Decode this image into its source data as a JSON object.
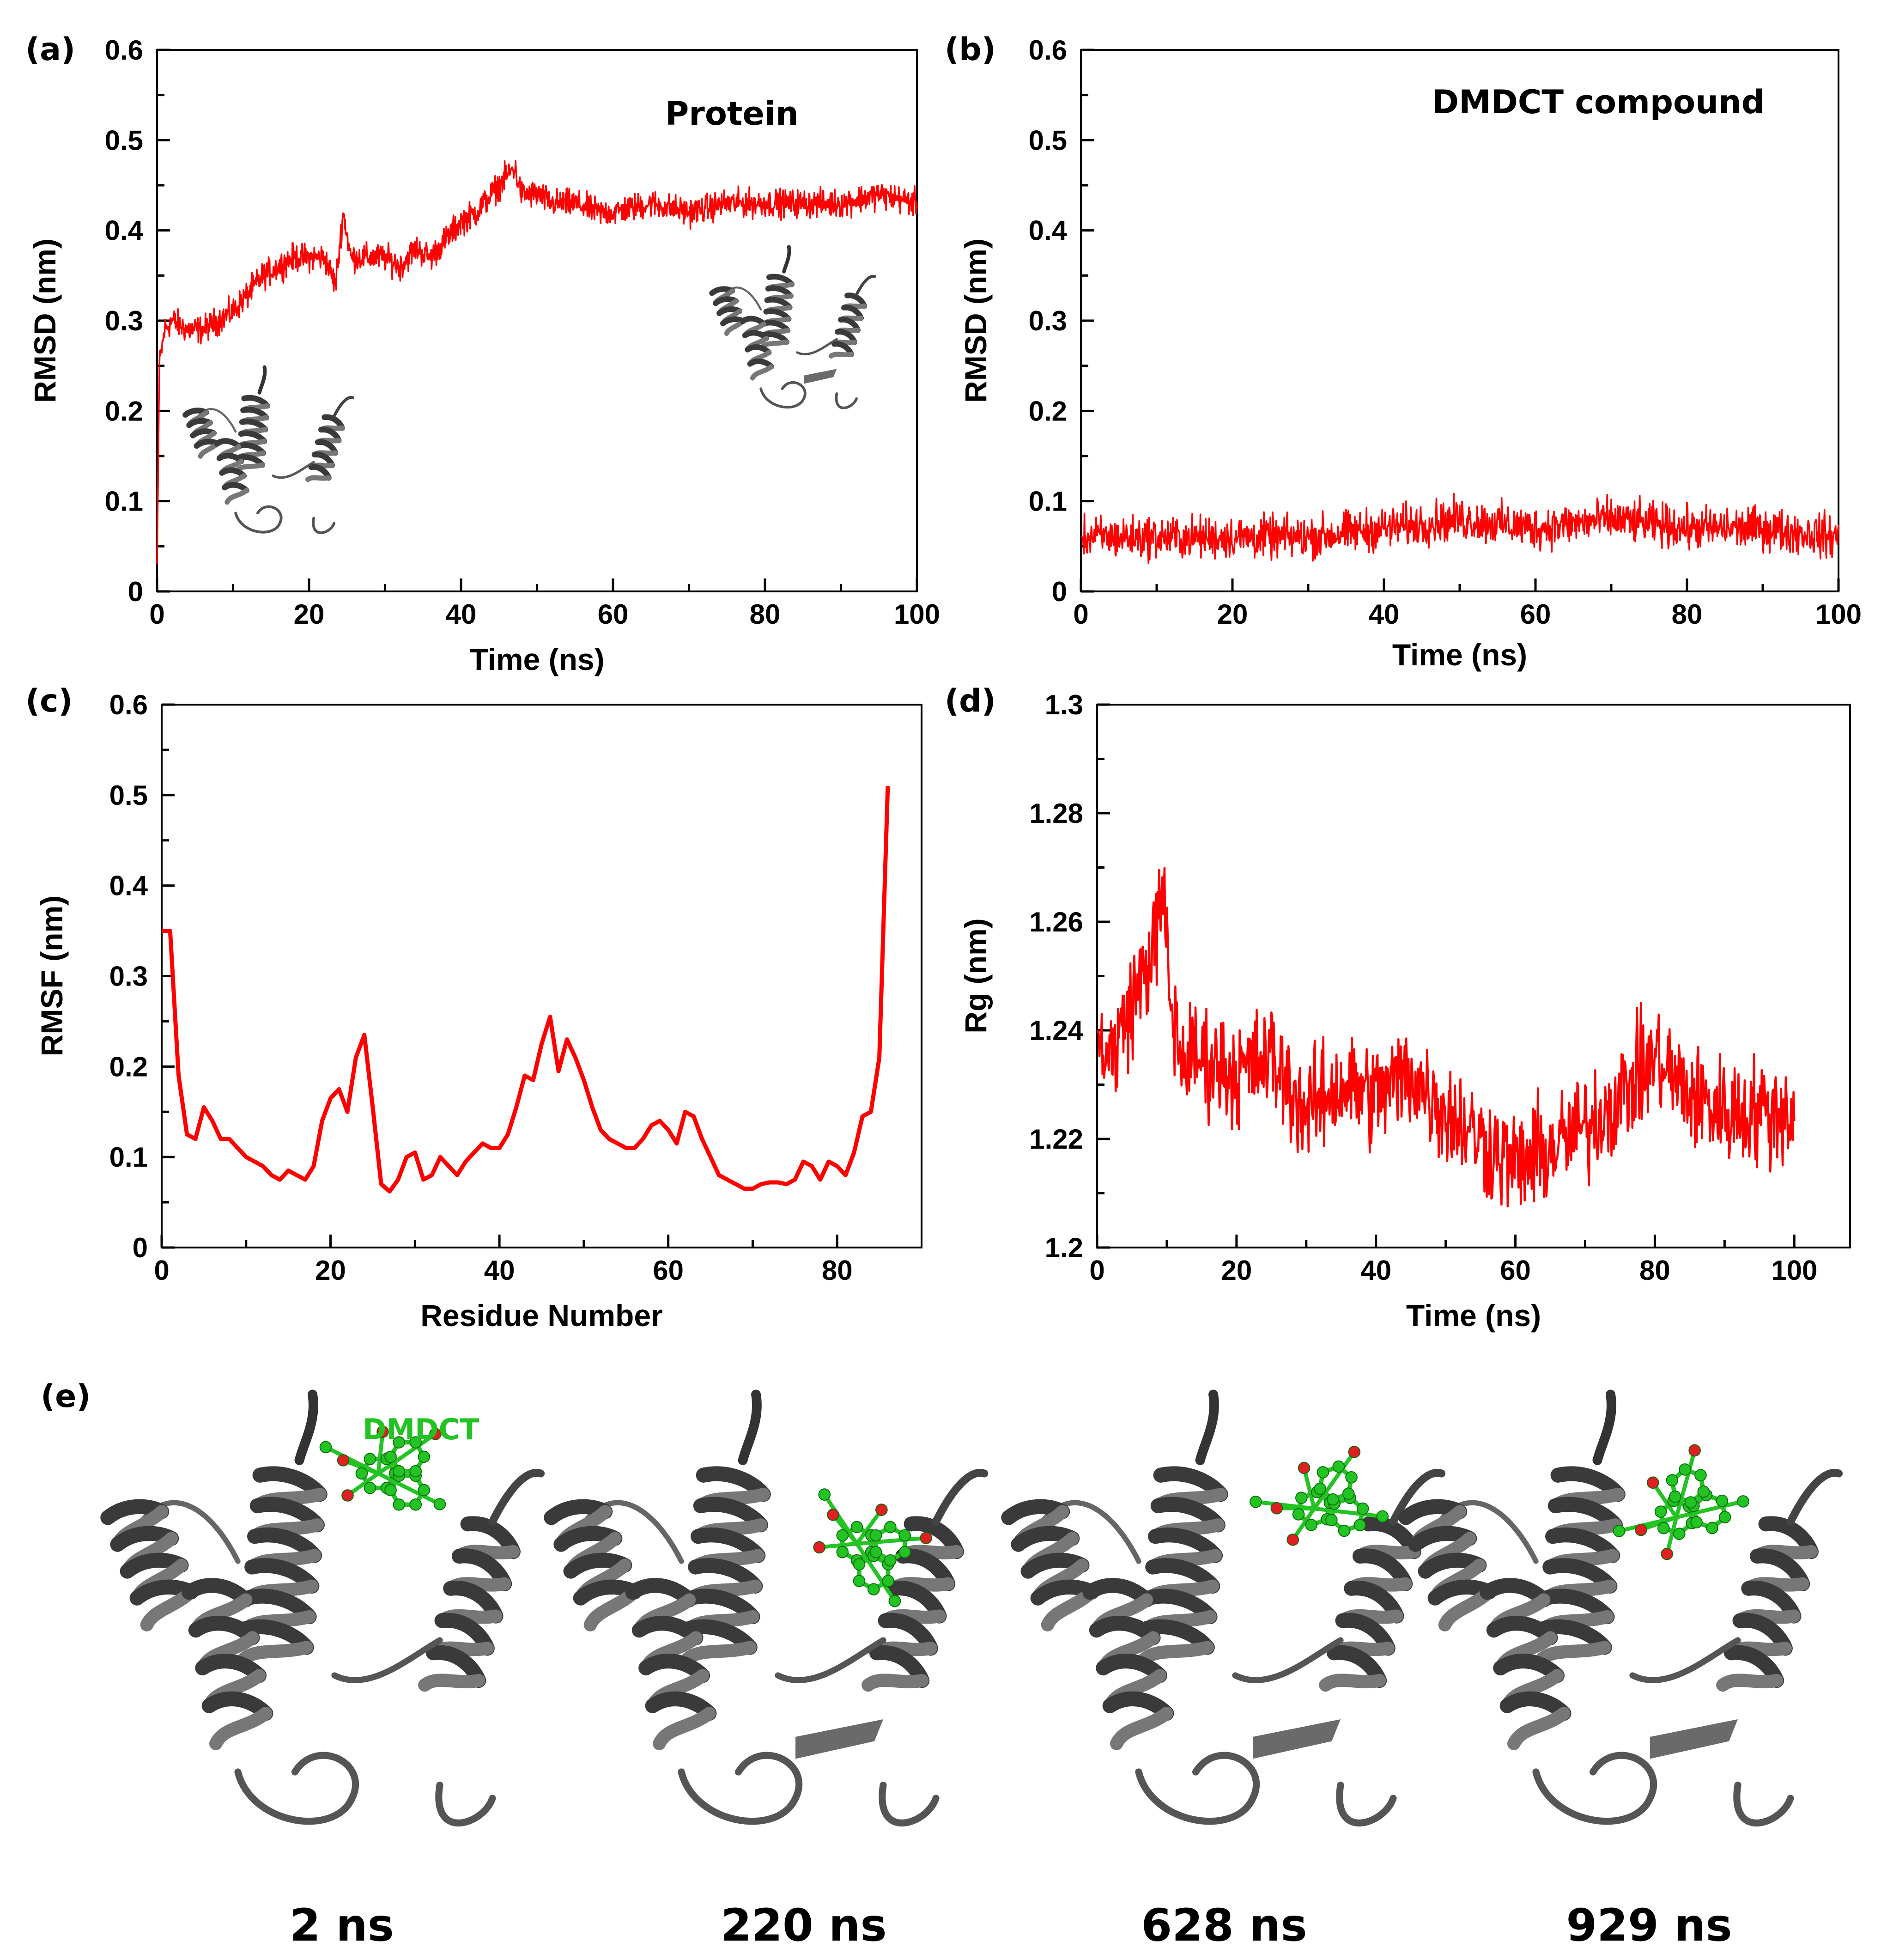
{
  "chart_data": [
    {
      "type": "line",
      "panel": "(a)",
      "annotation": "Protein",
      "xlabel": "Time (ns)",
      "ylabel": "RMSD (nm)",
      "xlim": [
        0,
        100
      ],
      "ylim": [
        0,
        0.6
      ],
      "xticks": [
        "0",
        "20",
        "40",
        "60",
        "80",
        "100"
      ],
      "yticks": [
        "0",
        "0.1",
        "0.2",
        "0.3",
        "0.4",
        "0.5",
        "0.6"
      ],
      "color": "#ff0000",
      "x": [
        0,
        0.3,
        1,
        2,
        4,
        6,
        8,
        10,
        12,
        14,
        16,
        18,
        20,
        22,
        23.5,
        24.5,
        25.5,
        28,
        30,
        32,
        34,
        36,
        38,
        40,
        42,
        44,
        46,
        47,
        48,
        50,
        52,
        55,
        58,
        60,
        65,
        70,
        75,
        80,
        85,
        90,
        95,
        100
      ],
      "values": [
        0.03,
        0.25,
        0.29,
        0.3,
        0.29,
        0.29,
        0.3,
        0.31,
        0.33,
        0.35,
        0.36,
        0.37,
        0.37,
        0.37,
        0.34,
        0.42,
        0.37,
        0.37,
        0.37,
        0.36,
        0.38,
        0.37,
        0.39,
        0.41,
        0.42,
        0.44,
        0.46,
        0.47,
        0.44,
        0.44,
        0.43,
        0.43,
        0.42,
        0.42,
        0.43,
        0.42,
        0.43,
        0.43,
        0.43,
        0.43,
        0.44,
        0.43
      ],
      "noise": 0.013
    },
    {
      "type": "line",
      "panel": "(b)",
      "annotation": "DMDCT compound",
      "xlabel": "Time (ns)",
      "ylabel": "RMSD (nm)",
      "xlim": [
        0,
        100
      ],
      "ylim": [
        0,
        0.6
      ],
      "xticks": [
        "0",
        "20",
        "40",
        "60",
        "80",
        "100"
      ],
      "yticks": [
        "0",
        "0.1",
        "0.2",
        "0.3",
        "0.4",
        "0.5",
        "0.6"
      ],
      "color": "#ff0000",
      "x": [
        0,
        10,
        20,
        30,
        40,
        50,
        60,
        70,
        80,
        90,
        100
      ],
      "values": [
        0.06,
        0.06,
        0.06,
        0.06,
        0.07,
        0.08,
        0.07,
        0.08,
        0.07,
        0.07,
        0.06
      ],
      "noise": 0.02
    },
    {
      "type": "line",
      "panel": "(c)",
      "xlabel": "Residue Number",
      "ylabel": "RMSF (nm)",
      "xlim": [
        0,
        90
      ],
      "ylim": [
        0,
        0.6
      ],
      "xticks": [
        "0",
        "20",
        "40",
        "60",
        "80"
      ],
      "yticks": [
        "0",
        "0.1",
        "0.2",
        "0.3",
        "0.4",
        "0.5",
        "0.6"
      ],
      "color": "#ff0000",
      "x": [
        0,
        1,
        2,
        3,
        4,
        5,
        6,
        7,
        8,
        9,
        10,
        11,
        12,
        13,
        14,
        15,
        16,
        17,
        18,
        19,
        20,
        21,
        22,
        23,
        24,
        25,
        26,
        27,
        28,
        29,
        30,
        31,
        32,
        33,
        34,
        35,
        36,
        37,
        38,
        39,
        40,
        41,
        42,
        43,
        44,
        45,
        46,
        47,
        48,
        49,
        50,
        51,
        52,
        53,
        54,
        55,
        56,
        57,
        58,
        59,
        60,
        61,
        62,
        63,
        64,
        65,
        66,
        67,
        68,
        69,
        70,
        71,
        72,
        73,
        74,
        75,
        76,
        77,
        78,
        79,
        80,
        81,
        82,
        83,
        84,
        85,
        86
      ],
      "values": [
        0.35,
        0.35,
        0.19,
        0.125,
        0.12,
        0.155,
        0.14,
        0.12,
        0.12,
        0.11,
        0.1,
        0.095,
        0.09,
        0.08,
        0.075,
        0.085,
        0.08,
        0.075,
        0.09,
        0.14,
        0.165,
        0.175,
        0.15,
        0.21,
        0.235,
        0.155,
        0.07,
        0.062,
        0.075,
        0.1,
        0.105,
        0.075,
        0.08,
        0.1,
        0.09,
        0.08,
        0.095,
        0.105,
        0.115,
        0.11,
        0.11,
        0.125,
        0.155,
        0.19,
        0.185,
        0.225,
        0.255,
        0.195,
        0.23,
        0.21,
        0.185,
        0.155,
        0.13,
        0.12,
        0.115,
        0.11,
        0.11,
        0.12,
        0.135,
        0.14,
        0.13,
        0.115,
        0.15,
        0.145,
        0.12,
        0.1,
        0.08,
        0.075,
        0.07,
        0.065,
        0.065,
        0.07,
        0.072,
        0.072,
        0.07,
        0.075,
        0.095,
        0.09,
        0.075,
        0.095,
        0.09,
        0.08,
        0.105,
        0.145,
        0.15,
        0.21,
        0.51
      ]
    },
    {
      "type": "line",
      "panel": "(d)",
      "xlabel": "Time (ns)",
      "ylabel": "Rg (nm)",
      "xlim": [
        0,
        108
      ],
      "ylim": [
        1.2,
        1.3
      ],
      "xticks": [
        "0",
        "20",
        "40",
        "60",
        "80",
        "100"
      ],
      "yticks": [
        "1.2",
        "1.22",
        "1.24",
        "1.26",
        "1.28",
        "1.3"
      ],
      "color": "#ff0000",
      "x": [
        0,
        2,
        5,
        8,
        9.5,
        10.5,
        12,
        15,
        20,
        25,
        30,
        35,
        40,
        45,
        50,
        55,
        60,
        65,
        70,
        75,
        80,
        85,
        90,
        95,
        100
      ],
      "values": [
        1.24,
        1.235,
        1.245,
        1.255,
        1.265,
        1.245,
        1.235,
        1.235,
        1.232,
        1.235,
        1.225,
        1.23,
        1.228,
        1.232,
        1.225,
        1.22,
        1.215,
        1.218,
        1.222,
        1.228,
        1.235,
        1.228,
        1.225,
        1.225,
        1.225
      ],
      "noise": 0.0085
    }
  ],
  "panels": {
    "a": "(a)",
    "b": "(b)",
    "c": "(c)",
    "d": "(d)",
    "e": "(e)"
  },
  "structures": {
    "ligand_name": "DMDCT",
    "ligand_color": "#22c322",
    "oxygen_color": "#e02020",
    "ribbon_color": "#5c5c5c",
    "snapshots": [
      "2 ns",
      "220 ns",
      "628 ns",
      "929 ns"
    ]
  }
}
